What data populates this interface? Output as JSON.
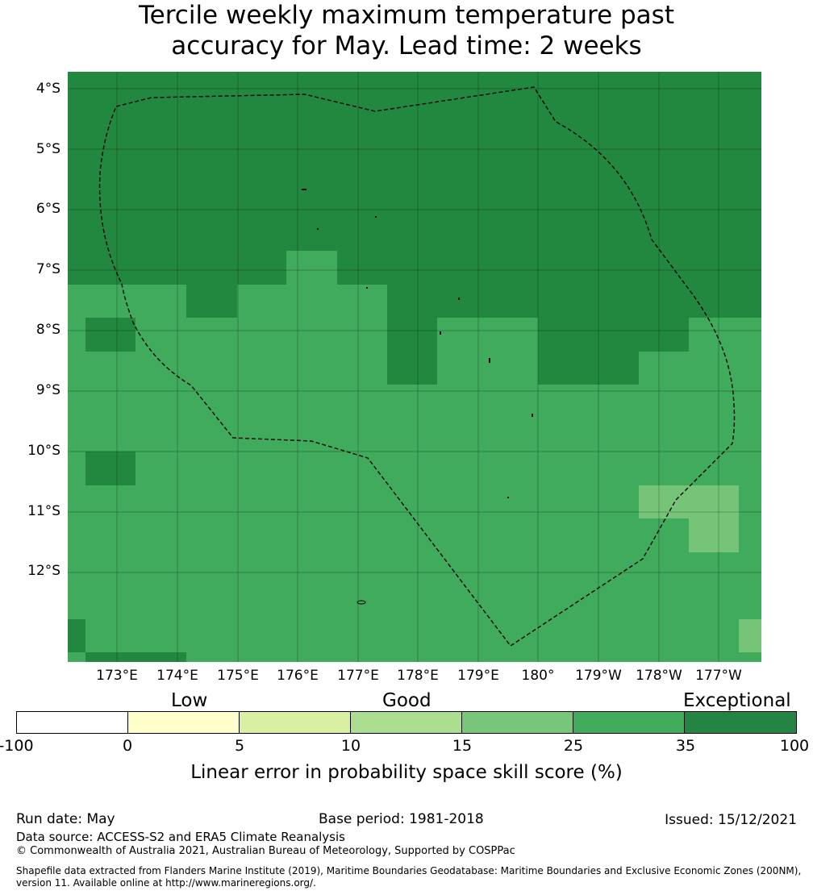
{
  "title": {
    "line1": "Tercile weekly maximum temperature past",
    "line2": "accuracy for May. Lead time: 2 weeks"
  },
  "map": {
    "lat_labels": [
      "4°S",
      "5°S",
      "6°S",
      "7°S",
      "8°S",
      "9°S",
      "10°S",
      "11°S",
      "12°S"
    ],
    "lon_labels": [
      "173°E",
      "174°E",
      "175°E",
      "176°E",
      "177°E",
      "178°E",
      "179°E",
      "180°",
      "179°W",
      "178°W",
      "177°W"
    ],
    "colors": {
      "exceptional": "#23883f",
      "band_25_35": "#40aa5d",
      "band_15_25": "#76c477",
      "ocean_edge": "#000000"
    },
    "boundary_style": "dashed EEZ outline"
  },
  "colorbar": {
    "categories": [
      "Low",
      "Good",
      "Exceptional"
    ],
    "ticks": [
      "-100",
      "0",
      "5",
      "10",
      "15",
      "25",
      "35",
      "100"
    ],
    "segments": [
      "#ffffff",
      "#ffffcc",
      "#d9f0a3",
      "#addd8e",
      "#78c679",
      "#41ab5d",
      "#238443"
    ],
    "label": "Linear error in probability space skill score (%)"
  },
  "footer": {
    "run_date": "Run date: May",
    "base_period": "Base period: 1981-2018",
    "issued": "Issued: 15/12/2021",
    "data_source": "Data source: ACCESS-S2 and ERA5 Climate Reanalysis",
    "copyright": "© Commonwealth of Australia 2021, Australian Bureau of Meteorology, Supported by COSPPac",
    "shapefile_line1": "Shapefile data extracted from Flanders Marine Institute (2019), Maritime Boundaries Geodatabase: Maritime Boundaries and Exclusive Economic Zones (200NM),",
    "shapefile_line2": "version 11. Available online at http://www.marineregions.org/."
  }
}
